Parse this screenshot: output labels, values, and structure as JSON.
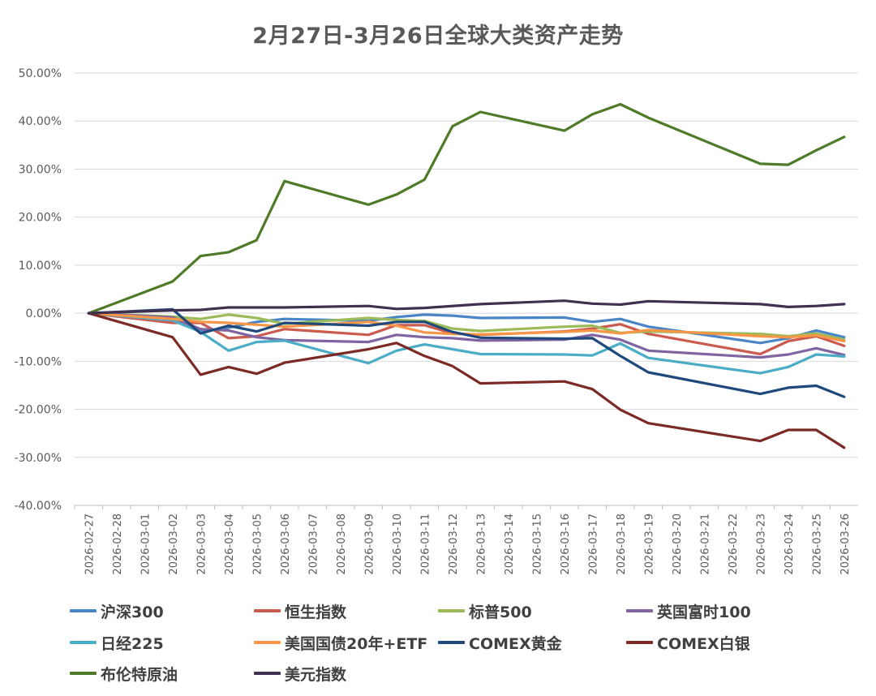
{
  "chart_data": {
    "type": "line",
    "title": "2月27日-3月26日全球大类资产走势",
    "xlabel": "",
    "ylabel": "",
    "ylim": [
      -40,
      50
    ],
    "yticks": [
      50,
      40,
      30,
      20,
      10,
      0,
      -10,
      -20,
      -30,
      -40
    ],
    "ytick_labels": [
      "50.00%",
      "40.00%",
      "30.00%",
      "20.00%",
      "10.00%",
      "0.00%",
      "-10.00%",
      "-20.00%",
      "-30.00%",
      "-40.00%"
    ],
    "grid": true,
    "legend_position": "bottom",
    "categories": [
      "2026-02-27",
      "2026-02-28",
      "2026-03-01",
      "2026-03-02",
      "2026-03-03",
      "2026-03-04",
      "2026-03-05",
      "2026-03-06",
      "2026-03-07",
      "2026-03-08",
      "2026-03-09",
      "2026-03-10",
      "2026-03-11",
      "2026-03-12",
      "2026-03-13",
      "2026-03-14",
      "2026-03-15",
      "2026-03-16",
      "2026-03-17",
      "2026-03-18",
      "2026-03-19",
      "2026-03-20",
      "2026-03-21",
      "2026-03-22",
      "2026-03-23",
      "2026-03-24",
      "2026-03-25",
      "2026-03-26"
    ],
    "series": [
      {
        "name": "沪深300",
        "color": "#4a86c5",
        "values": [
          0,
          null,
          null,
          -1.0,
          -3.8,
          -3.0,
          -1.8,
          -1.2,
          null,
          null,
          -1.6,
          -0.8,
          -0.3,
          -0.5,
          -1.0,
          null,
          null,
          -0.9,
          -1.8,
          -1.2,
          -2.8,
          null,
          null,
          null,
          -6.2,
          -5.2,
          -3.6,
          -5.0
        ]
      },
      {
        "name": "恒生指数",
        "color": "#cc5b4f",
        "values": [
          0,
          null,
          null,
          -2.0,
          -2.0,
          -5.2,
          -4.8,
          -3.3,
          null,
          null,
          -4.5,
          -2.5,
          -2.5,
          -4.2,
          -4.5,
          null,
          null,
          -3.8,
          -3.2,
          -2.3,
          -4.3,
          null,
          null,
          null,
          -8.5,
          -5.8,
          -4.8,
          -6.8
        ]
      },
      {
        "name": "标普500",
        "color": "#9bbb59",
        "values": [
          0,
          null,
          null,
          -0.7,
          -1.2,
          -0.3,
          -1.0,
          -2.2,
          null,
          null,
          -1.0,
          -1.4,
          -1.6,
          -3.2,
          -3.7,
          null,
          null,
          -2.8,
          -2.6,
          -4.1,
          -3.8,
          null,
          null,
          null,
          -4.3,
          -4.8,
          -4.2,
          -5.5
        ]
      },
      {
        "name": "英国富时100",
        "color": "#8064a2",
        "values": [
          0,
          null,
          null,
          -0.9,
          -3.3,
          -3.6,
          -5.0,
          -5.6,
          null,
          null,
          -6.0,
          -4.5,
          -5.0,
          -5.2,
          -5.7,
          null,
          null,
          -5.5,
          -4.5,
          -5.5,
          -7.8,
          null,
          null,
          null,
          -9.2,
          -8.6,
          -7.3,
          -8.7
        ]
      },
      {
        "name": "日经225",
        "color": "#4bacc6",
        "values": [
          0,
          null,
          null,
          -1.5,
          -3.9,
          -7.8,
          -6.0,
          -5.7,
          null,
          null,
          -10.4,
          -7.8,
          -6.5,
          -7.5,
          -8.5,
          null,
          null,
          -8.6,
          -8.8,
          -6.3,
          -9.3,
          null,
          null,
          null,
          -12.5,
          -11.2,
          -8.6,
          -9.0
        ]
      },
      {
        "name": "美国国债20年+ETF",
        "color": "#f79646",
        "values": [
          0,
          null,
          null,
          -1.2,
          -1.8,
          -2.0,
          -2.4,
          -2.8,
          null,
          null,
          -1.8,
          -2.6,
          -4.0,
          -4.3,
          -4.4,
          null,
          null,
          -3.9,
          -3.6,
          -4.2,
          -3.5,
          null,
          null,
          null,
          -4.8,
          -5.0,
          -4.6,
          -5.8
        ]
      },
      {
        "name": "COMEX黄金",
        "color": "#1f497d",
        "values": [
          0,
          null,
          null,
          0.8,
          -4.2,
          -2.6,
          -3.8,
          -2.0,
          null,
          null,
          -2.6,
          -1.8,
          -1.8,
          -3.9,
          -5.1,
          null,
          null,
          -5.3,
          -5.2,
          -8.9,
          -12.3,
          null,
          null,
          null,
          -16.8,
          -15.5,
          -15.1,
          -17.4
        ]
      },
      {
        "name": "COMEX白银",
        "color": "#7b2a26",
        "values": [
          0,
          null,
          null,
          -5.0,
          -12.8,
          -11.2,
          -12.6,
          -10.3,
          null,
          null,
          -7.5,
          -6.2,
          -8.9,
          -11.0,
          -14.6,
          null,
          null,
          -14.2,
          -15.8,
          -20.1,
          -22.9,
          null,
          null,
          null,
          -26.6,
          -24.3,
          -24.3,
          -28.0
        ]
      },
      {
        "name": "布伦特原油",
        "color": "#4f7a28",
        "values": [
          0,
          null,
          null,
          6.6,
          11.9,
          12.7,
          15.2,
          27.5,
          null,
          null,
          22.6,
          24.7,
          27.8,
          38.9,
          41.9,
          null,
          null,
          38.0,
          41.4,
          43.5,
          40.7,
          null,
          null,
          null,
          31.1,
          30.9,
          33.9,
          36.7
        ]
      },
      {
        "name": "美元指数",
        "color": "#403151",
        "values": [
          0,
          null,
          null,
          0.6,
          0.7,
          1.2,
          1.2,
          1.2,
          null,
          null,
          1.5,
          0.9,
          1.1,
          null,
          1.9,
          null,
          null,
          2.6,
          2.0,
          1.8,
          2.5,
          null,
          null,
          null,
          1.9,
          1.3,
          1.5,
          1.9
        ]
      }
    ]
  }
}
